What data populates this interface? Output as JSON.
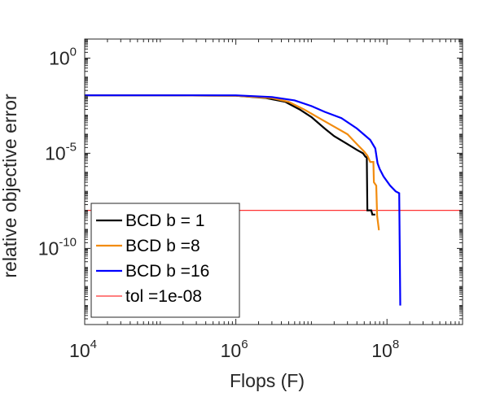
{
  "chart_data": {
    "type": "line",
    "title": "",
    "xlabel": "Flops (F)",
    "ylabel": "relative objective error",
    "x_scale": "log",
    "y_scale": "log",
    "xlim": [
      10000,
      1000000000
    ],
    "ylim": [
      1e-14,
      10.0
    ],
    "x_ticks": [
      {
        "value": 10000,
        "base": "10",
        "exp": "4"
      },
      {
        "value": 1000000,
        "base": "10",
        "exp": "6"
      },
      {
        "value": 100000000,
        "base": "10",
        "exp": "8"
      }
    ],
    "y_ticks": [
      {
        "value": 1,
        "base": "10",
        "exp": "0"
      },
      {
        "value": 1e-05,
        "base": "10",
        "exp": "-5"
      },
      {
        "value": 1e-10,
        "base": "10",
        "exp": "-10"
      }
    ],
    "grid": false,
    "legend_position": "bottom-left",
    "series": [
      {
        "name": "BCD b = 1",
        "color": "#000000",
        "points": [
          [
            10000,
            0.011
          ],
          [
            100000,
            0.011
          ],
          [
            1000000,
            0.0105
          ],
          [
            2500000,
            0.008
          ],
          [
            4500000,
            0.005
          ],
          [
            7000000,
            0.002
          ],
          [
            10000000,
            0.0008
          ],
          [
            15000000,
            0.0002
          ],
          [
            20000000,
            8e-05
          ],
          [
            30000000,
            3e-05
          ],
          [
            40000000,
            1.5e-05
          ],
          [
            48000000,
            1e-05
          ],
          [
            52000000,
            6.5e-06
          ],
          [
            54000000,
            6.5e-06
          ],
          [
            55000000,
            1e-08
          ],
          [
            62000000,
            1e-08
          ],
          [
            64000000,
            6e-09
          ],
          [
            70000000,
            6e-09
          ]
        ]
      },
      {
        "name": "BCD b =8",
        "color": "#F28C0F",
        "points": [
          [
            10000,
            0.011
          ],
          [
            100000,
            0.011
          ],
          [
            1000000,
            0.0105
          ],
          [
            3000000,
            0.008
          ],
          [
            5000000,
            0.005
          ],
          [
            8000000,
            0.002
          ],
          [
            12000000,
            0.0008
          ],
          [
            20000000,
            0.00025
          ],
          [
            30000000,
            0.0001
          ],
          [
            40000000,
            3e-05
          ],
          [
            50000000,
            1.2e-05
          ],
          [
            55000000,
            7.5e-06
          ],
          [
            60000000,
            3.5e-06
          ],
          [
            66000000,
            3.5e-06
          ],
          [
            67000000,
            3e-07
          ],
          [
            72000000,
            2e-07
          ],
          [
            74000000,
            5e-09
          ],
          [
            78000000,
            1e-09
          ],
          [
            80000000,
            1e-09
          ]
        ]
      },
      {
        "name": "BCD b =16",
        "color": "#0000FF",
        "points": [
          [
            10000,
            0.011
          ],
          [
            100000,
            0.011
          ],
          [
            1000000,
            0.011
          ],
          [
            3000000,
            0.009
          ],
          [
            6000000,
            0.006
          ],
          [
            10000000,
            0.003
          ],
          [
            15000000,
            0.0015
          ],
          [
            25000000,
            0.0007
          ],
          [
            40000000,
            0.0002
          ],
          [
            60000000,
            5e-05
          ],
          [
            70000000,
            1.8e-05
          ],
          [
            75000000,
            3e-06
          ],
          [
            80000000,
            1.5e-06
          ],
          [
            90000000,
            6e-07
          ],
          [
            110000000,
            2e-07
          ],
          [
            130000000,
            1e-07
          ],
          [
            145000000,
            8e-08
          ],
          [
            150000000,
            1e-13
          ]
        ]
      }
    ],
    "reference_lines": [
      {
        "name": "tol =1e-08",
        "orientation": "horizontal",
        "value": 1e-08,
        "color": "#FF3333"
      }
    ]
  }
}
